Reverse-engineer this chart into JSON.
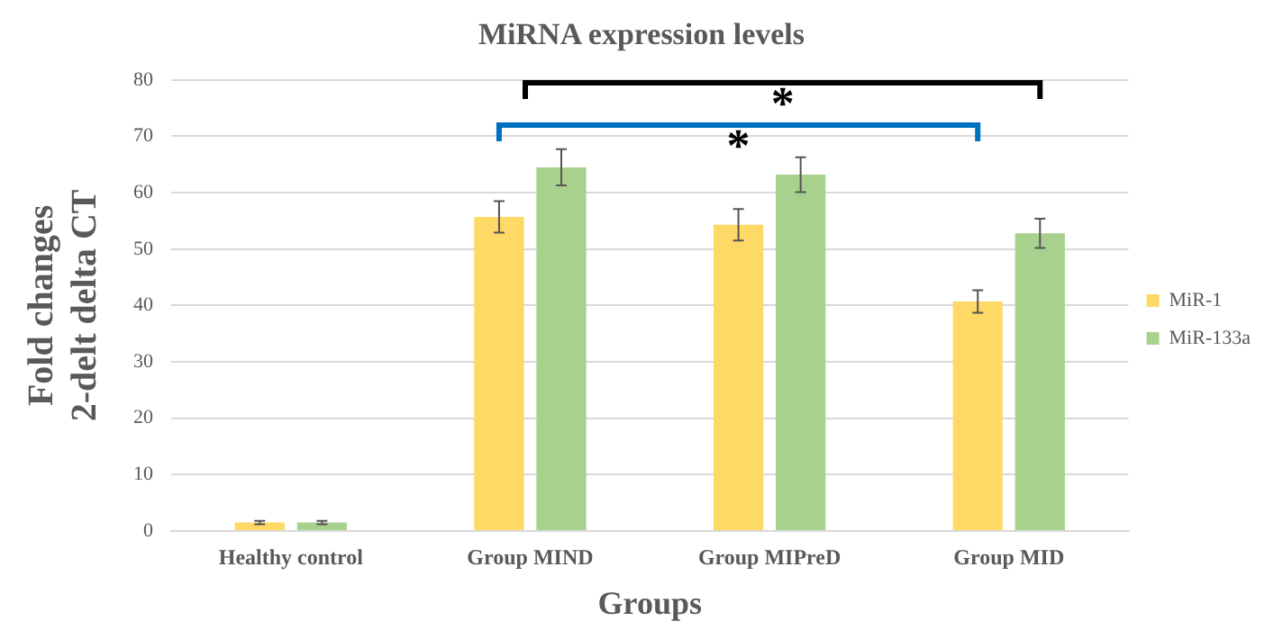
{
  "chart_data": {
    "type": "bar",
    "title": "MiRNA expression levels",
    "xlabel": "Groups",
    "ylabel": "Fold changes\n2-delt delta CT",
    "categories": [
      "Healthy control",
      "Group MIND",
      "Group MIPreD",
      "Group MID"
    ],
    "series": [
      {
        "name": "MiR-1",
        "color": "#ffd966",
        "values": [
          1.5,
          55.7,
          54.3,
          40.7
        ],
        "errors": [
          0.3,
          2.8,
          2.8,
          2.0
        ]
      },
      {
        "name": "MiR-133a",
        "color": "#a9d18e",
        "values": [
          1.5,
          64.5,
          63.2,
          52.8
        ],
        "errors": [
          0.3,
          3.2,
          3.1,
          2.6
        ]
      }
    ],
    "ylim": [
      0,
      80
    ],
    "yticks": [
      0,
      10,
      20,
      30,
      40,
      50,
      60,
      70,
      80
    ],
    "grid": "y",
    "legend": "right",
    "annotations": [
      "*",
      "*"
    ]
  }
}
